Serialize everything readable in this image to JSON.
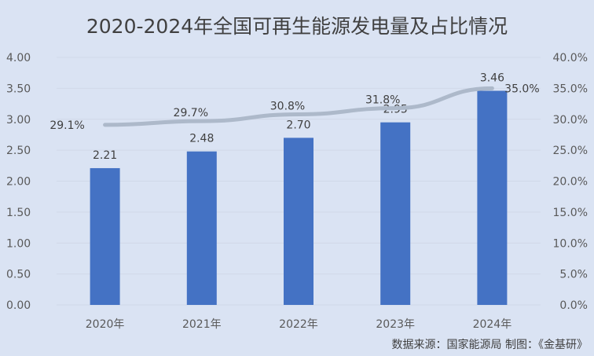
{
  "title": "2020-2024年全国可再生能源发电量及占比情况",
  "source": "数据来源：国家能源局   制图：《金基研》",
  "colors": {
    "background": "#dae3f3",
    "bar": "#4472c4",
    "line": "#adb9ca",
    "gridline": "#d0d8e8",
    "text": "#404040"
  },
  "chart_data": {
    "type": "bar+line",
    "title": "2020-2024年全国可再生能源发电量及占比情况",
    "categories": [
      "2020年",
      "2021年",
      "2022年",
      "2023年",
      "2024年"
    ],
    "series": [
      {
        "name": "可再生能源发电量",
        "type": "bar",
        "axis": "left",
        "values": [
          2.21,
          2.48,
          2.7,
          2.95,
          3.46
        ],
        "labels": [
          "2.21",
          "2.48",
          "2.70",
          "2.95",
          "3.46"
        ]
      },
      {
        "name": "占比",
        "type": "line",
        "axis": "right",
        "values": [
          29.1,
          29.7,
          30.8,
          31.8,
          35.0
        ],
        "labels": [
          "29.1%",
          "29.7%",
          "30.8%",
          "31.8%",
          "35.0%"
        ]
      }
    ],
    "left_axis": {
      "ticks": [
        "0.00",
        "0.50",
        "1.00",
        "1.50",
        "2.00",
        "2.50",
        "3.00",
        "3.50",
        "4.00"
      ],
      "ylim": [
        0,
        4
      ]
    },
    "right_axis": {
      "ticks": [
        "0.0%",
        "5.0%",
        "10.0%",
        "15.0%",
        "20.0%",
        "25.0%",
        "30.0%",
        "35.0%",
        "40.0%"
      ],
      "ylim": [
        0,
        40
      ]
    },
    "grid": true,
    "legend": "none",
    "xlabel": "",
    "ylabel": ""
  }
}
